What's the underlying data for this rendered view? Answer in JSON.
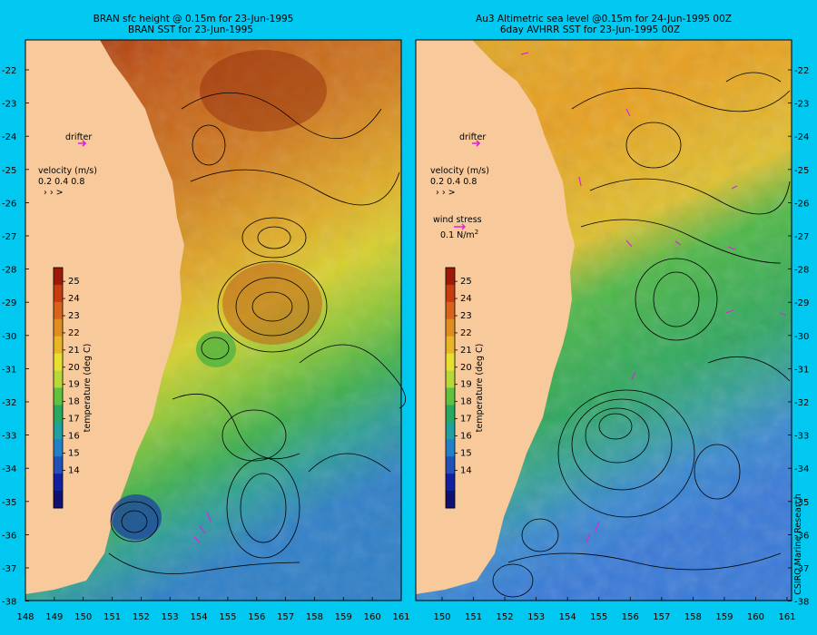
{
  "background_color": "#00c8f0",
  "land_color": "#f8c99a",
  "left_panel": {
    "title_line1": "BRAN sfc height @ 0.15m for 23-Jun-1995",
    "title_line2": "BRAN SST for 23-Jun-1995",
    "drifter_label": "drifter",
    "velocity_title": "velocity (m/s)",
    "velocity_values": "0.2 0.4 0.8",
    "velocity_arrows": "› › >"
  },
  "right_panel": {
    "title_line1": "Au3 Altimetric sea level  @0.15m  for 24-Jun-1995 00Z",
    "title_line2": "6day AVHRR SST for 23-Jun-1995 00Z",
    "drifter_label": "drifter",
    "velocity_title": "velocity (m/s)",
    "velocity_values": "0.2 0.4 0.8",
    "velocity_arrows": "› › >",
    "wind_title": "wind stress",
    "wind_value": "0.1 N/m",
    "wind_exp": "2",
    "credit": "CSIRO Marine Research"
  },
  "colorbar": {
    "label": "temperature (deg C)",
    "ticks": [
      "25",
      "24",
      "23",
      "22",
      "21",
      "20",
      "19",
      "18",
      "17",
      "16",
      "15",
      "14"
    ],
    "colors": [
      "#a01808",
      "#c83a10",
      "#d8641c",
      "#e08c20",
      "#e8b428",
      "#e8e030",
      "#b8d838",
      "#60c040",
      "#28a860",
      "#20a0a0",
      "#2080c8",
      "#2050b8",
      "#1020a0",
      "#101070"
    ]
  },
  "axes": {
    "lat_labels": [
      "-22",
      "-23",
      "-24",
      "-25",
      "-26",
      "-27",
      "-28",
      "-29",
      "-30",
      "-31",
      "-32",
      "-33",
      "-34",
      "-35",
      "-36",
      "-37",
      "-38"
    ],
    "lon_labels_left": [
      "148",
      "149",
      "150",
      "151",
      "152",
      "153",
      "154",
      "155",
      "156",
      "157",
      "158",
      "159",
      "160",
      "161"
    ],
    "lon_labels_right": [
      "150",
      "151",
      "152",
      "153",
      "154",
      "155",
      "156",
      "157",
      "158",
      "159",
      "160",
      "161"
    ]
  }
}
